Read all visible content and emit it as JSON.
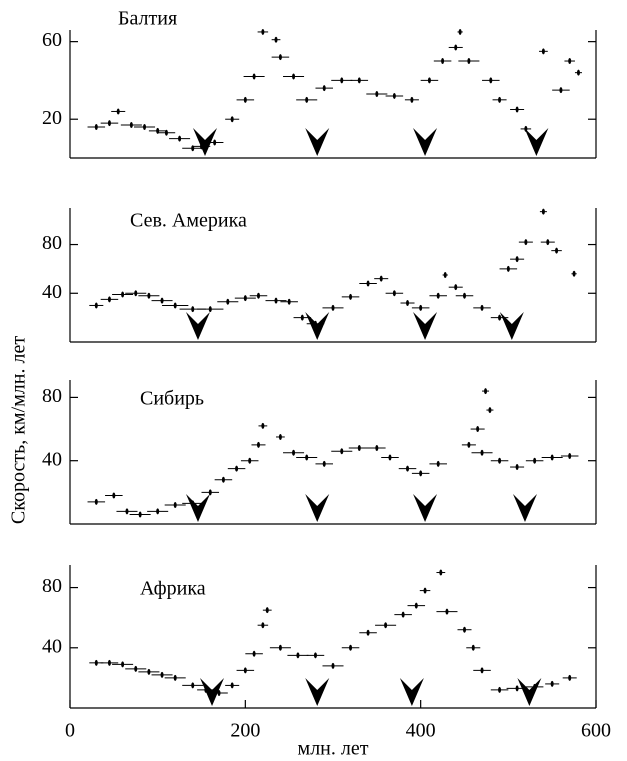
{
  "ylabel": "Скорость, км/млн. лет",
  "chart_data": [
    {
      "type": "scatter",
      "title": "Балтия",
      "color": "#000000",
      "x": [
        30,
        45,
        55,
        70,
        85,
        100,
        110,
        125,
        140,
        150,
        165,
        185,
        200,
        210,
        220,
        235,
        240,
        255,
        270,
        290,
        310,
        330,
        350,
        370,
        390,
        410,
        425,
        445,
        440,
        455,
        480,
        490,
        510,
        520,
        540,
        560,
        570,
        580
      ],
      "values": [
        16,
        18,
        24,
        17,
        16,
        14,
        13,
        10,
        5,
        6,
        8,
        20,
        30,
        42,
        65,
        61,
        52,
        42,
        30,
        36,
        40,
        40,
        33,
        32,
        30,
        40,
        50,
        65,
        57,
        50,
        40,
        30,
        25,
        15,
        55,
        35,
        50,
        44
      ],
      "xerr": [
        10,
        10,
        8,
        12,
        12,
        10,
        10,
        12,
        12,
        10,
        10,
        8,
        10,
        12,
        6,
        5,
        10,
        12,
        12,
        10,
        12,
        10,
        12,
        10,
        8,
        10,
        10,
        3,
        8,
        12,
        10,
        8,
        8,
        6,
        5,
        10,
        6,
        4
      ],
      "minima": [
        154,
        282,
        405,
        532
      ],
      "xlim": [
        0,
        600
      ],
      "ylim": [
        0,
        66
      ],
      "yticks": [
        20,
        60
      ]
    },
    {
      "type": "scatter",
      "title": "Сев. Америка",
      "color": "#000000",
      "x": [
        30,
        45,
        60,
        75,
        90,
        105,
        120,
        140,
        160,
        180,
        200,
        215,
        235,
        250,
        265,
        280,
        300,
        320,
        340,
        355,
        370,
        385,
        400,
        420,
        428,
        440,
        450,
        470,
        490,
        500,
        510,
        520,
        540,
        545,
        555,
        575
      ],
      "values": [
        30,
        35,
        39,
        40,
        38,
        34,
        30,
        27,
        27,
        33,
        36,
        38,
        34,
        33,
        20,
        15,
        28,
        37,
        48,
        52,
        40,
        32,
        28,
        38,
        55,
        45,
        38,
        28,
        20,
        60,
        68,
        82,
        107,
        82,
        75,
        56
      ],
      "xerr": [
        8,
        10,
        12,
        12,
        12,
        12,
        15,
        15,
        15,
        12,
        12,
        10,
        12,
        10,
        10,
        10,
        12,
        10,
        10,
        8,
        10,
        8,
        10,
        10,
        3,
        8,
        10,
        10,
        10,
        10,
        8,
        8,
        4,
        8,
        6,
        3
      ],
      "minima": [
        146,
        282,
        405,
        504
      ],
      "xlim": [
        0,
        600
      ],
      "ylim": [
        0,
        110
      ],
      "yticks": [
        40,
        80
      ]
    },
    {
      "type": "scatter",
      "title": "Сибирь",
      "color": "#000000",
      "x": [
        30,
        50,
        65,
        80,
        100,
        120,
        140,
        160,
        175,
        190,
        205,
        215,
        220,
        240,
        255,
        270,
        290,
        310,
        330,
        350,
        365,
        385,
        400,
        420,
        474,
        479,
        465,
        455,
        470,
        490,
        510,
        530,
        550,
        570
      ],
      "values": [
        14,
        18,
        8,
        6,
        8,
        12,
        13,
        20,
        28,
        35,
        40,
        50,
        62,
        55,
        45,
        42,
        38,
        46,
        48,
        48,
        42,
        35,
        32,
        38,
        84,
        72,
        60,
        50,
        45,
        40,
        36,
        40,
        42,
        43
      ],
      "xerr": [
        10,
        10,
        12,
        12,
        12,
        12,
        12,
        10,
        10,
        10,
        10,
        8,
        5,
        5,
        12,
        12,
        10,
        12,
        12,
        10,
        10,
        10,
        10,
        10,
        4,
        4,
        8,
        8,
        12,
        10,
        8,
        10,
        12,
        10
      ],
      "minima": [
        146,
        282,
        405,
        519
      ],
      "xlim": [
        0,
        600
      ],
      "ylim": [
        0,
        91
      ],
      "yticks": [
        40,
        80
      ]
    },
    {
      "type": "scatter",
      "title": "Африка",
      "color": "#000000",
      "x": [
        30,
        45,
        60,
        75,
        90,
        105,
        120,
        140,
        155,
        170,
        185,
        200,
        210,
        220,
        225,
        240,
        260,
        280,
        300,
        320,
        340,
        360,
        380,
        395,
        405,
        423,
        430,
        450,
        460,
        470,
        490,
        510,
        530,
        550,
        570
      ],
      "values": [
        30,
        30,
        29,
        26,
        24,
        22,
        20,
        15,
        12,
        10,
        15,
        25,
        36,
        55,
        65,
        40,
        35,
        35,
        28,
        40,
        50,
        55,
        62,
        68,
        78,
        90,
        64,
        52,
        40,
        25,
        12,
        13,
        14,
        16,
        20
      ],
      "xerr": [
        8,
        10,
        12,
        12,
        12,
        12,
        12,
        12,
        10,
        10,
        8,
        10,
        10,
        6,
        5,
        12,
        12,
        10,
        12,
        10,
        10,
        12,
        10,
        10,
        6,
        5,
        12,
        8,
        8,
        10,
        10,
        12,
        10,
        8,
        8
      ],
      "minima": [
        162,
        282,
        390,
        524
      ],
      "xlim": [
        0,
        600
      ],
      "ylim": [
        0,
        95
      ],
      "yticks": [
        40,
        80
      ],
      "xticks": [
        0,
        200,
        400,
        600
      ],
      "xlabel": "млн. лет"
    }
  ]
}
